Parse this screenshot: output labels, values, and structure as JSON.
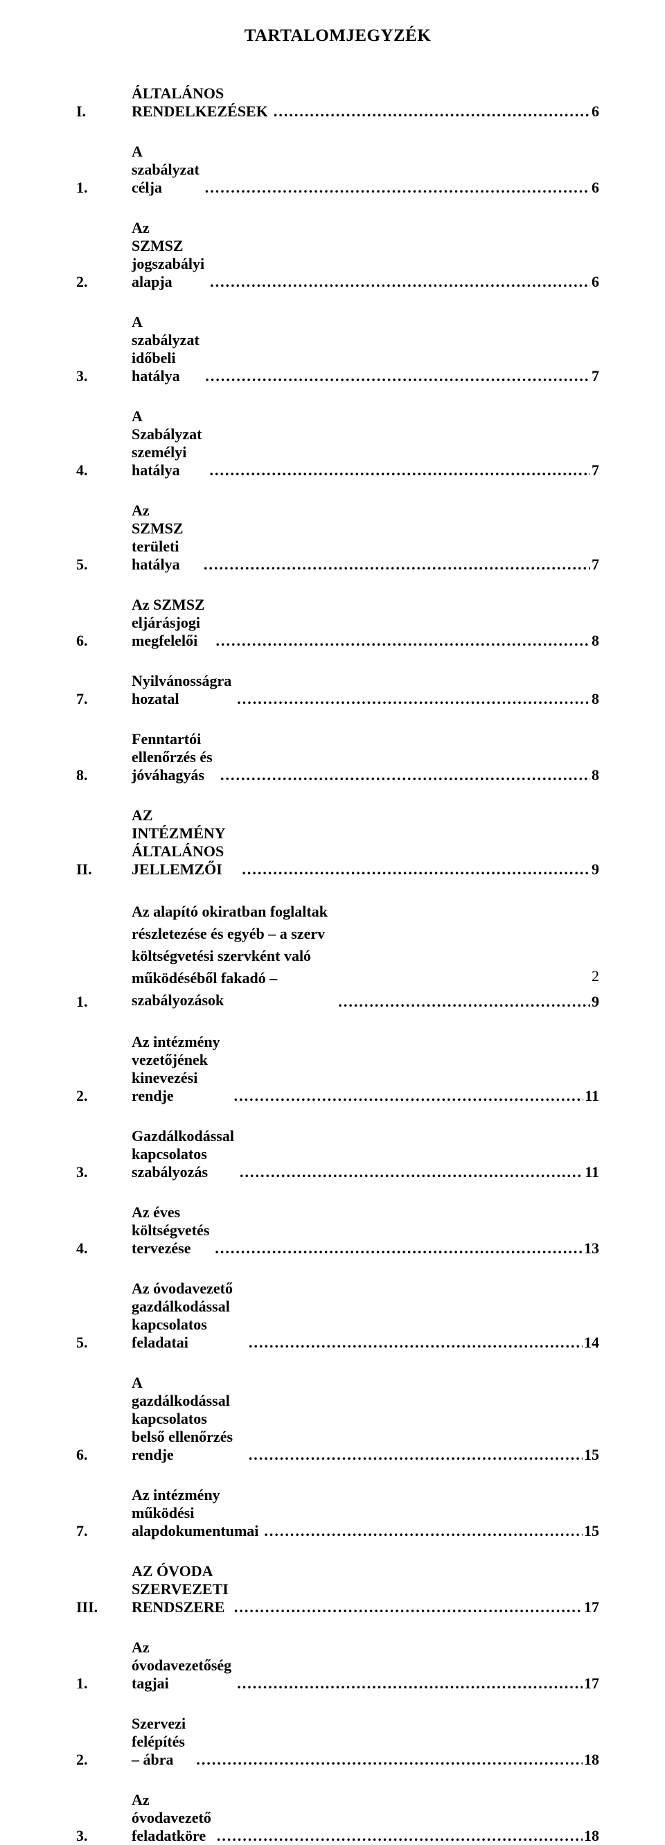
{
  "title": "TARTALOMJEGYZÉK",
  "page_number": "2",
  "entries": [
    {
      "num": "I.",
      "text": "ÁLTALÁNOS RENDELKEZÉSEK",
      "page": "6"
    },
    {
      "num": "1.",
      "text": "A szabályzat célja",
      "page": "6"
    },
    {
      "num": "2.",
      "text": "Az SZMSZ jogszabályi alapja",
      "page": "6"
    },
    {
      "num": "3.",
      "text": "A szabályzat időbeli hatálya",
      "page": "7"
    },
    {
      "num": "4.",
      "text": "A Szabályzat személyi hatálya",
      "page": "7"
    },
    {
      "num": "5.",
      "text": "Az SZMSZ területi hatálya",
      "page": "7"
    },
    {
      "num": "6.",
      "text": "Az SZMSZ eljárásjogi megfelelői",
      "page": "8"
    },
    {
      "num": "7.",
      "text": "Nyilvánosságra hozatal",
      "page": "8"
    },
    {
      "num": "8.",
      "text": "Fenntartói ellenőrzés és jóváhagyás",
      "page": "8"
    },
    {
      "num": "II.",
      "text": "AZ INTÉZMÉNY ÁLTALÁNOS JELLEMZŐI",
      "page": "9"
    },
    {
      "num": "1.",
      "text": "Az alapító okiratban foglaltak részletezése és egyéb – a szerv költségvetési szervként való működéséből fakadó – szabályozások",
      "page": "9",
      "multiline": true
    },
    {
      "num": "2.",
      "text": "Az intézmény vezetőjének kinevezési rendje",
      "page": "11"
    },
    {
      "num": "3.",
      "text": "Gazdálkodással kapcsolatos szabályozás",
      "page": "11"
    },
    {
      "num": "4.",
      "text": "Az éves költségvetés tervezése",
      "page": "13"
    },
    {
      "num": "5.",
      "text": "Az óvodavezető gazdálkodással kapcsolatos feladatai",
      "page": "14"
    },
    {
      "num": "6.",
      "text": "A gazdálkodással kapcsolatos belső ellenőrzés rendje",
      "page": "15"
    },
    {
      "num": "7.",
      "text": "Az intézmény működési alapdokumentumai",
      "page": "15"
    },
    {
      "num": "III.",
      "text": "AZ ÓVODA SZERVEZETI RENDSZERE",
      "page": "17"
    },
    {
      "num": "1.",
      "text": "Az óvodavezetőség tagjai",
      "page": "17"
    },
    {
      "num": "2.",
      "text": "Szervezi felépítés – ábra",
      "page": "18"
    },
    {
      "num": "3.",
      "text": "Az óvodavezető feladatköre",
      "page": "18"
    }
  ]
}
